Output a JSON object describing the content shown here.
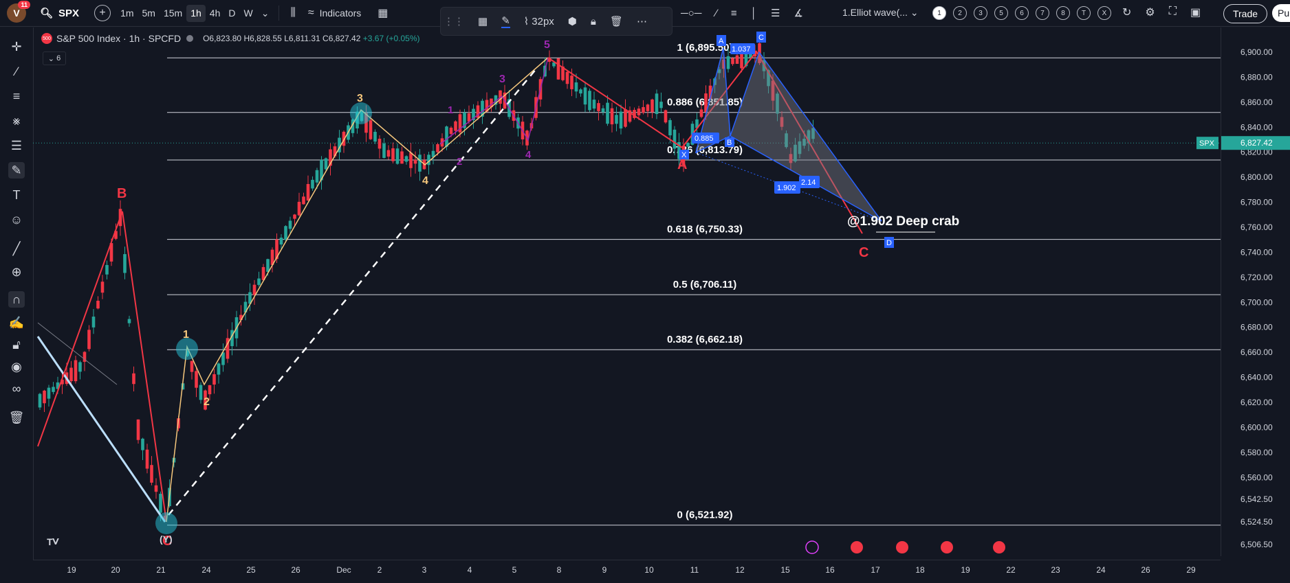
{
  "topbar": {
    "avatar_letter": "V",
    "badge_count": "11",
    "symbol": "SPX",
    "timeframes": [
      "1m",
      "5m",
      "15m",
      "1h",
      "4h",
      "D",
      "W"
    ],
    "active_timeframe": "1h",
    "indicators_label": "Indicators",
    "brush_size": "32px",
    "template_name": "1.Elliot wave(...",
    "num_buttons": [
      "1",
      "2",
      "3",
      "5",
      "6",
      "7",
      "8",
      "T",
      "X"
    ],
    "trade_label": "Trade",
    "publish_label": "Pul"
  },
  "legend": {
    "logo_text": "500",
    "title": "S&P 500 Index · 1h · SPCFD",
    "open": "O6,823.80",
    "high": "H6,828.55",
    "low": "L6,811.31",
    "close": "C6,827.42",
    "change": "+3.67 (+0.05%)",
    "indicator_count": "6"
  },
  "colors": {
    "background": "#131722",
    "up": "#26a69a",
    "down": "#f23645",
    "wave": "#f7c87d",
    "crab": "#2962ff",
    "impulse": "#9c27b0"
  },
  "price_axis": {
    "labels": [
      "6,900.00",
      "6,880.00",
      "6,860.00",
      "6,840.00",
      "6,820.00",
      "6,800.00",
      "6,780.00",
      "6,760.00",
      "6,740.00",
      "6,720.00",
      "6,700.00",
      "6,680.00",
      "6,660.00",
      "6,640.00",
      "6,620.00",
      "6,600.00",
      "6,580.00",
      "6,560.00",
      "6,542.50",
      "6,524.50",
      "6,506.50"
    ],
    "current_symbol": "SPX",
    "current_price": "6,827.42"
  },
  "time_axis": {
    "labels": [
      "19",
      "20",
      "21",
      "24",
      "25",
      "26",
      "Dec",
      "2",
      "3",
      "4",
      "5",
      "8",
      "9",
      "10",
      "11",
      "12",
      "15",
      "16",
      "17",
      "18",
      "19",
      "22",
      "23",
      "24",
      "26",
      "29"
    ]
  },
  "fib_levels": [
    {
      "label": "1 (6,895.50)",
      "price": 6895.5
    },
    {
      "label": "0.886 (6,851.85)",
      "price": 6851.85
    },
    {
      "label": "0.786 (6,813.79)",
      "price": 6813.79
    },
    {
      "label": "0.618 (6,750.33)",
      "price": 6750.33
    },
    {
      "label": "0.5 (6,706.11)",
      "price": 6706.11
    },
    {
      "label": "0.382 (6,662.18)",
      "price": 6662.18
    },
    {
      "label": "0 (6,521.92)",
      "price": 6521.92
    }
  ],
  "annotations": {
    "crab_label": "@1.902 Deep crab",
    "wave_labels": [
      "B",
      "A",
      "C",
      "C",
      "(Y)",
      "1",
      "2",
      "3",
      "4",
      "5",
      "1",
      "2",
      "3",
      "4"
    ],
    "crab_ratios": [
      "0.885",
      "1.037",
      "1.902",
      "2.14"
    ],
    "crab_points": [
      "A",
      "C",
      "D",
      "X",
      "B"
    ]
  }
}
